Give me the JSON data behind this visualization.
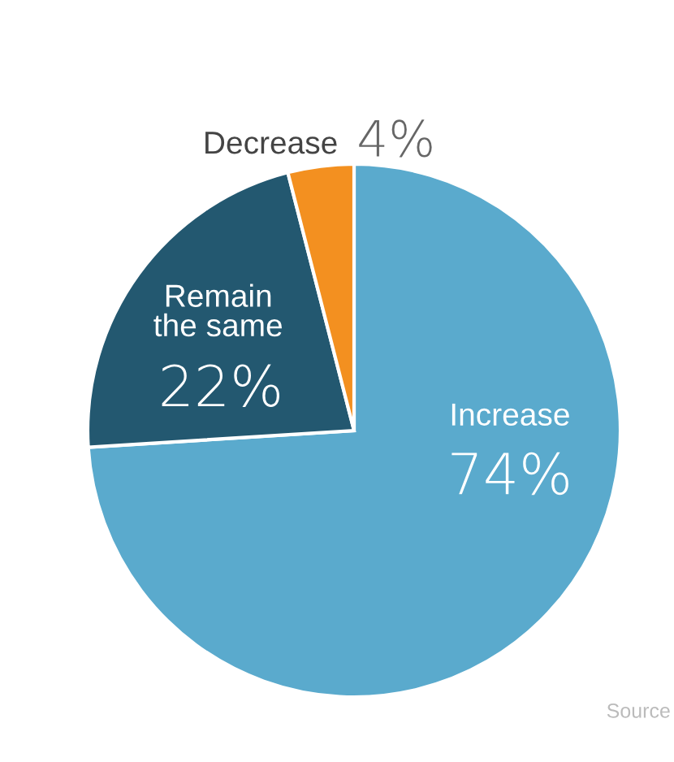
{
  "chart_data": {
    "type": "pie",
    "categories": [
      "Increase",
      "Remain\nthe same",
      "Decrease"
    ],
    "values": [
      74,
      22,
      4
    ],
    "value_labels": [
      "74%",
      "22%",
      "4%"
    ],
    "colors": [
      "#5aaacd",
      "#235870",
      "#f39020"
    ],
    "annotations": [
      "Source"
    ]
  }
}
